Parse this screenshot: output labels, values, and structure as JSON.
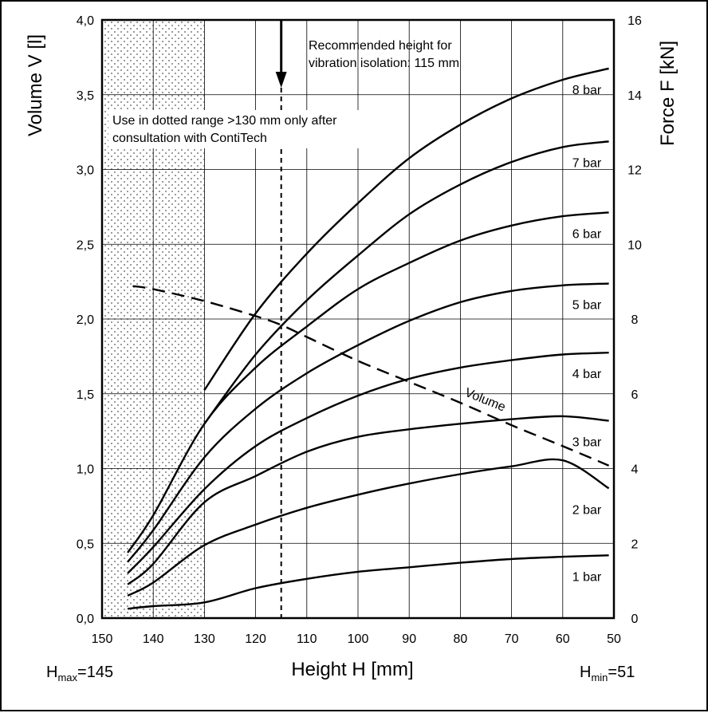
{
  "chart_data": {
    "type": "line",
    "title": "",
    "xlabel": "Height H [mm]",
    "ylabel_left": "Volume V [l]",
    "ylabel_right": "Force F [kN]",
    "x_reversed": true,
    "xlim": [
      150,
      50
    ],
    "ylim_left": [
      0,
      4
    ],
    "ylim_right": [
      0,
      16
    ],
    "grid": true,
    "x_ticks": [
      "150",
      "140",
      "130",
      "120",
      "110",
      "100",
      "90",
      "80",
      "70",
      "60",
      "50"
    ],
    "y_left_ticks": [
      "0,0",
      "0,5",
      "1,0",
      "1,5",
      "2,0",
      "2,5",
      "3,0",
      "3,5",
      "4,0"
    ],
    "y_right_ticks": [
      "0",
      "2",
      "4",
      "6",
      "8",
      "10",
      "12",
      "14",
      "16"
    ],
    "force_series": [
      {
        "name": "1 bar",
        "axis": "right",
        "x": [
          145,
          140,
          130,
          120,
          110,
          100,
          90,
          80,
          70,
          60,
          51
        ],
        "y": [
          0.25,
          0.32,
          0.42,
          0.8,
          1.05,
          1.24,
          1.36,
          1.48,
          1.58,
          1.64,
          1.68
        ]
      },
      {
        "name": "2 bar",
        "axis": "right",
        "x": [
          145,
          140,
          130,
          120,
          110,
          100,
          90,
          80,
          70,
          60,
          51
        ],
        "y": [
          0.6,
          0.95,
          1.95,
          2.5,
          2.95,
          3.3,
          3.6,
          3.85,
          4.06,
          4.22,
          3.47
        ]
      },
      {
        "name": "3 bar",
        "axis": "right",
        "x": [
          145,
          140,
          130,
          120,
          110,
          100,
          90,
          80,
          70,
          60,
          51
        ],
        "y": [
          0.9,
          1.45,
          3.1,
          3.8,
          4.45,
          4.85,
          5.05,
          5.2,
          5.32,
          5.4,
          5.28
        ]
      },
      {
        "name": "4 bar",
        "axis": "right",
        "x": [
          145,
          140,
          130,
          120,
          110,
          100,
          90,
          80,
          70,
          60,
          51
        ],
        "y": [
          1.2,
          1.9,
          3.45,
          4.6,
          5.35,
          5.95,
          6.4,
          6.7,
          6.9,
          7.05,
          7.1
        ]
      },
      {
        "name": "5 bar",
        "axis": "right",
        "x": [
          145,
          140,
          130,
          120,
          110,
          100,
          90,
          80,
          70,
          60,
          51
        ],
        "y": [
          1.5,
          2.35,
          4.3,
          5.6,
          6.55,
          7.3,
          7.95,
          8.45,
          8.75,
          8.9,
          8.95
        ]
      },
      {
        "name": "6 bar",
        "axis": "right",
        "x": [
          145,
          140,
          130,
          120,
          110,
          100,
          90,
          80,
          70,
          60,
          51
        ],
        "y": [
          1.75,
          2.75,
          5.2,
          6.7,
          7.8,
          8.8,
          9.5,
          10.1,
          10.5,
          10.75,
          10.85
        ]
      },
      {
        "name": "7 bar",
        "axis": "right",
        "x": [
          130,
          120,
          110,
          100,
          90,
          80,
          70,
          60,
          51
        ],
        "y": [
          5.2,
          7.05,
          8.5,
          9.7,
          10.8,
          11.6,
          12.2,
          12.6,
          12.75
        ]
      },
      {
        "name": "8 bar",
        "axis": "right",
        "x": [
          130,
          120,
          110,
          100,
          90,
          80,
          70,
          60,
          51
        ],
        "y": [
          6.1,
          8.15,
          9.75,
          11.1,
          12.3,
          13.2,
          13.9,
          14.4,
          14.7
        ]
      }
    ],
    "volume_series": {
      "name": "Volume",
      "axis": "left",
      "style": "dashed",
      "x": [
        144,
        140,
        130,
        120,
        115,
        110,
        100,
        90,
        80,
        70,
        60,
        51
      ],
      "y": [
        2.22,
        2.2,
        2.12,
        2.02,
        1.96,
        1.88,
        1.72,
        1.58,
        1.44,
        1.29,
        1.15,
        1.02
      ]
    },
    "recommended_height": 115,
    "dotted_range": [
      150,
      130
    ],
    "annotations": {
      "recommended_line1": "Recommended height for",
      "recommended_line2": "vibration isolation: 115 mm",
      "dotted_line1": "Use in dotted range >130 mm only after",
      "dotted_line2": "consultation with ContiTech",
      "volume_label": "Volume"
    },
    "hmax": {
      "main": "H",
      "sub": "max",
      "value": "=145"
    },
    "hmin": {
      "main": "H",
      "sub": "min",
      "value": "=51"
    }
  }
}
